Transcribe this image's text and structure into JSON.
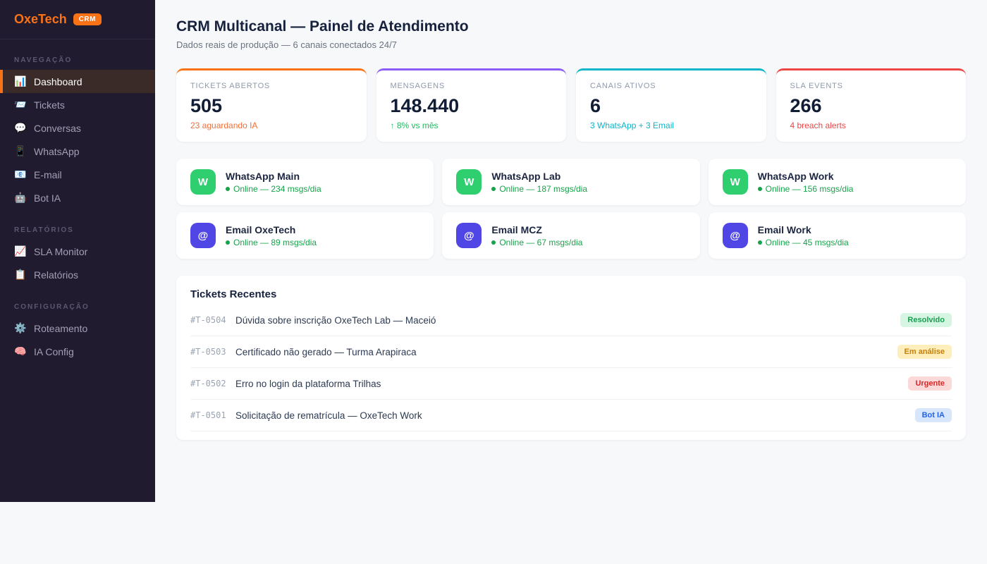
{
  "brand": {
    "name": "OxeTech",
    "badge": "CRM",
    "accent_color": "#f97316"
  },
  "sidebar": {
    "sections": [
      {
        "label": "NAVEGAÇÃO",
        "items": [
          {
            "icon": "📊",
            "label": "Dashboard",
            "active": true
          },
          {
            "icon": "📨",
            "label": "Tickets"
          },
          {
            "icon": "💬",
            "label": "Conversas"
          },
          {
            "icon": "📱",
            "label": "WhatsApp"
          },
          {
            "icon": "📧",
            "label": "E-mail"
          },
          {
            "icon": "🤖",
            "label": "Bot IA"
          }
        ]
      },
      {
        "label": "RELATÓRIOS",
        "items": [
          {
            "icon": "📈",
            "label": "SLA Monitor"
          },
          {
            "icon": "📋",
            "label": "Relatórios"
          }
        ]
      },
      {
        "label": "CONFIGURAÇÃO",
        "items": [
          {
            "icon": "⚙️",
            "label": "Roteamento"
          },
          {
            "icon": "🧠",
            "label": "IA Config"
          }
        ]
      }
    ]
  },
  "header": {
    "title": "CRM Multicanal — Painel de Atendimento",
    "subtitle": "Dados reais de produção — 6 canais conectados 24/7"
  },
  "stats": {
    "cards": [
      {
        "label": "TICKETS ABERTOS",
        "value": "505",
        "sub": "23 aguardando IA",
        "accent": "#f97316",
        "sub_color": "#f0703a"
      },
      {
        "label": "MENSAGENS",
        "value": "148.440",
        "sub": "↑ 8% vs mês",
        "accent": "#8b5cf6",
        "sub_color": "#22b95f"
      },
      {
        "label": "CANAIS ATIVOS",
        "value": "6",
        "sub": "3 WhatsApp + 3 Email",
        "accent": "#0cb5c9",
        "sub_color": "#0cb5c9"
      },
      {
        "label": "SLA EVENTS",
        "value": "266",
        "sub": "4 breach alerts",
        "accent": "#ef4444",
        "sub_color": "#ef4444"
      }
    ]
  },
  "channels": [
    {
      "icon_letter": "W",
      "icon_bg": "#2fce6f",
      "name": "WhatsApp Main",
      "status": "Online — 234 msgs/dia"
    },
    {
      "icon_letter": "W",
      "icon_bg": "#2fce6f",
      "name": "WhatsApp Lab",
      "status": "Online — 187 msgs/dia"
    },
    {
      "icon_letter": "W",
      "icon_bg": "#2fce6f",
      "name": "WhatsApp Work",
      "status": "Online — 156 msgs/dia"
    },
    {
      "icon_letter": "@",
      "icon_bg": "#5046e5",
      "name": "Email OxeTech",
      "status": "Online — 89 msgs/dia"
    },
    {
      "icon_letter": "@",
      "icon_bg": "#5046e5",
      "name": "Email MCZ",
      "status": "Online — 67 msgs/dia"
    },
    {
      "icon_letter": "@",
      "icon_bg": "#5046e5",
      "name": "Email Work",
      "status": "Online — 45 msgs/dia"
    }
  ],
  "tickets": {
    "title": "Tickets Recentes",
    "rows": [
      {
        "id": "#T-0504",
        "subject": "Dúvida sobre inscrição OxeTech Lab — Maceió",
        "badge": {
          "label": "Resolvido",
          "bg": "#d6f5e3",
          "color": "#17a052"
        }
      },
      {
        "id": "#T-0503",
        "subject": "Certificado não gerado — Turma Arapiraca",
        "badge": {
          "label": "Em análise",
          "bg": "#fdeebc",
          "color": "#c87f0a"
        }
      },
      {
        "id": "#T-0502",
        "subject": "Erro no login da plataforma Trilhas",
        "badge": {
          "label": "Urgente",
          "bg": "#fbd9d9",
          "color": "#dc2626"
        }
      },
      {
        "id": "#T-0501",
        "subject": "Solicitação de rematrícula — OxeTech Work",
        "badge": {
          "label": "Bot IA",
          "bg": "#d8e6fb",
          "color": "#2563eb"
        }
      }
    ]
  }
}
